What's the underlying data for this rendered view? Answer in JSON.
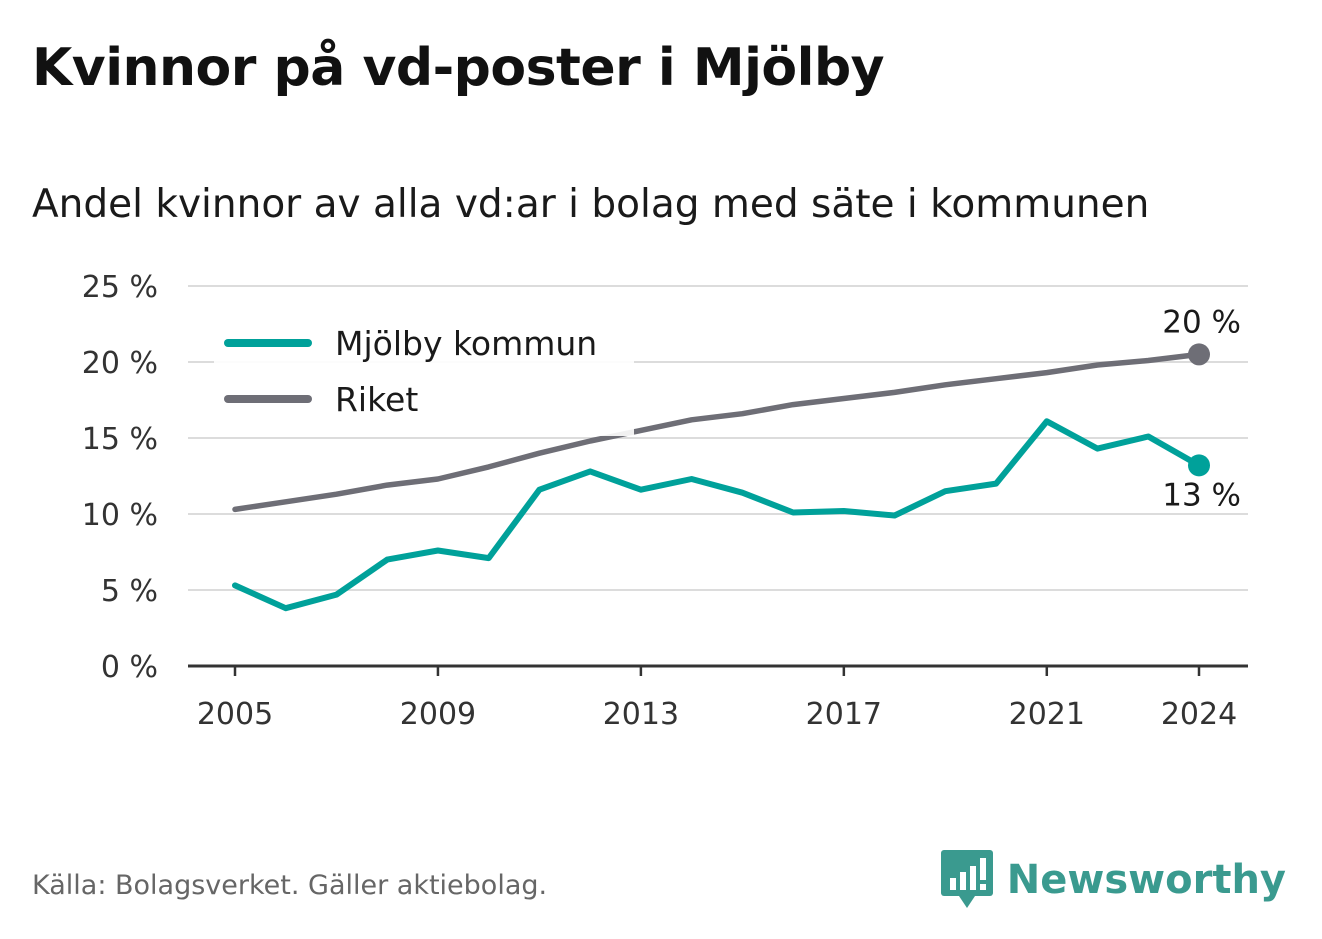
{
  "header": {
    "title": "Kvinnor på vd-poster i Mjölby",
    "subtitle": "Andel kvinnor av alla vd:ar i bolag med säte i kommunen"
  },
  "footer": {
    "source": "Källa: Bolagsverket. Gäller aktiebolag.",
    "brand": "Newsworthy",
    "brand_icon": "bar-chart-speech-bubble-icon",
    "brand_color": "#3a9a8f"
  },
  "chart_data": {
    "type": "line",
    "ylim": [
      0,
      25
    ],
    "xlim": [
      2005,
      2024
    ],
    "y_ticks": [
      0,
      5,
      10,
      15,
      20,
      25
    ],
    "y_tick_labels": [
      "0 %",
      "5 %",
      "10 %",
      "15 %",
      "20 %",
      "25 %"
    ],
    "x_ticks": [
      2005,
      2009,
      2013,
      2017,
      2021,
      2024
    ],
    "x_tick_labels": [
      "2005",
      "2009",
      "2013",
      "2017",
      "2021",
      "2024"
    ],
    "grid": true,
    "legend_position": "top-left",
    "x": [
      2005,
      2006,
      2007,
      2008,
      2009,
      2010,
      2011,
      2012,
      2013,
      2014,
      2015,
      2016,
      2017,
      2018,
      2019,
      2020,
      2021,
      2022,
      2023,
      2024
    ],
    "series": [
      {
        "name": "Mjölby kommun",
        "color": "#00a19a",
        "values": [
          5.3,
          3.8,
          4.7,
          7.0,
          7.6,
          7.1,
          11.6,
          12.8,
          11.6,
          12.3,
          11.4,
          10.1,
          10.2,
          9.9,
          11.5,
          12.0,
          16.1,
          14.3,
          15.1,
          13.2
        ],
        "end_label": "13 %"
      },
      {
        "name": "Riket",
        "color": "#6e6e76",
        "values": [
          10.3,
          10.8,
          11.3,
          11.9,
          12.3,
          13.1,
          14.0,
          14.8,
          15.5,
          16.2,
          16.6,
          17.2,
          17.6,
          18.0,
          18.5,
          18.9,
          19.3,
          19.8,
          20.1,
          20.5
        ],
        "end_label": "20 %"
      }
    ]
  }
}
